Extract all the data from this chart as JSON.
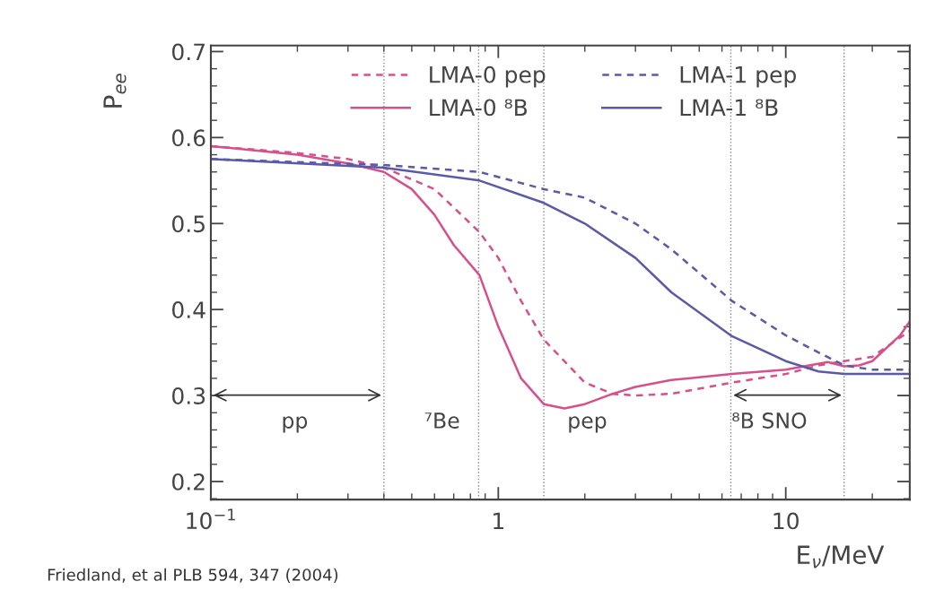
{
  "chart_data": {
    "type": "line",
    "xlabel": "E$_{ν}$/MeV",
    "ylabel": "P$_{ee}$",
    "log": "x",
    "xlim": [
      0.1,
      27
    ],
    "ylim": [
      0.179,
      0.707
    ],
    "xticks": [
      {
        "value": 0.1,
        "label": "10$^{−1}$"
      },
      1,
      10
    ],
    "yticks": [
      0.2,
      0.3,
      0.4,
      0.5,
      0.6,
      0.7
    ],
    "grid": false,
    "legend": "top",
    "series": [
      {
        "name": "LMA-0 pep",
        "color": "#d6508a",
        "line_style": "dashed",
        "x": [
          0.1,
          0.2,
          0.3,
          0.4,
          0.6,
          0.86,
          1.0,
          1.2,
          1.44,
          2,
          2.5,
          3,
          4,
          6.5,
          10,
          13,
          16,
          20,
          27
        ],
        "values": [
          0.59,
          0.582,
          0.575,
          0.565,
          0.54,
          0.49,
          0.46,
          0.41,
          0.365,
          0.315,
          0.302,
          0.3,
          0.302,
          0.315,
          0.325,
          0.335,
          0.34,
          0.345,
          0.375
        ]
      },
      {
        "name": "LMA-0 ⁸B",
        "color": "#d6508a",
        "line_style": "solid",
        "x": [
          0.1,
          0.2,
          0.3,
          0.4,
          0.5,
          0.6,
          0.7,
          0.86,
          1.0,
          1.2,
          1.44,
          1.7,
          2,
          2.5,
          3,
          4,
          6.5,
          10,
          14,
          16,
          18,
          20,
          25,
          27
        ],
        "values": [
          0.59,
          0.58,
          0.57,
          0.56,
          0.54,
          0.51,
          0.475,
          0.44,
          0.38,
          0.32,
          0.29,
          0.285,
          0.29,
          0.302,
          0.31,
          0.318,
          0.325,
          0.33,
          0.339,
          0.334,
          0.335,
          0.34,
          0.37,
          0.386
        ]
      },
      {
        "name": "LMA-1 pep",
        "color": "#5a5aa8",
        "line_style": "dashed",
        "x": [
          0.1,
          0.4,
          0.86,
          1.44,
          2,
          3,
          4,
          6.5,
          10,
          13,
          16,
          20,
          27
        ],
        "values": [
          0.575,
          0.568,
          0.56,
          0.54,
          0.53,
          0.5,
          0.47,
          0.41,
          0.37,
          0.35,
          0.335,
          0.33,
          0.33
        ]
      },
      {
        "name": "LMA-1 ⁸B",
        "color": "#5a5aa8",
        "line_style": "solid",
        "x": [
          0.1,
          0.4,
          0.86,
          1.44,
          2,
          3,
          4,
          6.5,
          10,
          13,
          16,
          27
        ],
        "values": [
          0.575,
          0.565,
          0.55,
          0.524,
          0.5,
          0.46,
          0.42,
          0.369,
          0.34,
          0.328,
          0.325,
          0.325
        ]
      }
    ],
    "ref_lines": [
      {
        "axis": "x",
        "value": 0.4,
        "color": "#888888",
        "line_style": "dotted"
      },
      {
        "axis": "x",
        "value": 0.854,
        "color": "#888888",
        "line_style": "dotted"
      },
      {
        "axis": "x",
        "value": 1.44,
        "color": "#888888",
        "line_style": "dotted"
      },
      {
        "axis": "x",
        "value": 6.44,
        "color": "#888888",
        "line_style": "dotted"
      },
      {
        "axis": "x",
        "value": 15.96,
        "color": "#888888",
        "line_style": "dotted"
      }
    ],
    "annotations": [
      "pp",
      "⁷Be",
      "pep",
      "⁸B SNO",
      "Friedland, et al PLB 594, 347 (2004)"
    ]
  }
}
